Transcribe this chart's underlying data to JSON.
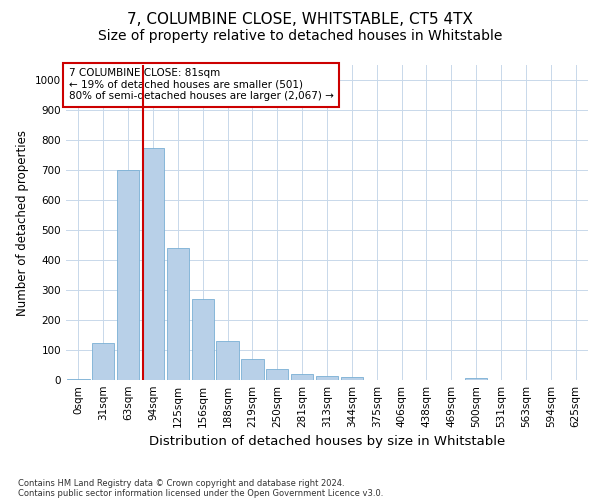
{
  "title": "7, COLUMBINE CLOSE, WHITSTABLE, CT5 4TX",
  "subtitle": "Size of property relative to detached houses in Whitstable",
  "xlabel": "Distribution of detached houses by size in Whitstable",
  "ylabel": "Number of detached properties",
  "footnote1": "Contains HM Land Registry data © Crown copyright and database right 2024.",
  "footnote2": "Contains public sector information licensed under the Open Government Licence v3.0.",
  "bar_labels": [
    "0sqm",
    "31sqm",
    "63sqm",
    "94sqm",
    "125sqm",
    "156sqm",
    "188sqm",
    "219sqm",
    "250sqm",
    "281sqm",
    "313sqm",
    "344sqm",
    "375sqm",
    "406sqm",
    "438sqm",
    "469sqm",
    "500sqm",
    "531sqm",
    "563sqm",
    "594sqm",
    "625sqm"
  ],
  "bar_values": [
    5,
    125,
    700,
    775,
    440,
    270,
    130,
    70,
    38,
    20,
    12,
    10,
    0,
    0,
    0,
    0,
    8,
    0,
    0,
    0,
    0
  ],
  "bar_color": "#b8d0e8",
  "bar_edge_color": "#7aafd4",
  "bar_width": 0.9,
  "ylim": [
    0,
    1050
  ],
  "yticks": [
    0,
    100,
    200,
    300,
    400,
    500,
    600,
    700,
    800,
    900,
    1000
  ],
  "vline_color": "#cc0000",
  "vline_x": 2.581,
  "annotation_text": "7 COLUMBINE CLOSE: 81sqm\n← 19% of detached houses are smaller (501)\n80% of semi-detached houses are larger (2,067) →",
  "annotation_box_color": "#ffffff",
  "annotation_box_edge": "#cc0000",
  "bg_color": "#ffffff",
  "grid_color": "#c8d8ea",
  "title_fontsize": 11,
  "subtitle_fontsize": 10,
  "tick_fontsize": 7.5,
  "ylabel_fontsize": 8.5,
  "xlabel_fontsize": 9.5,
  "footnote_fontsize": 6,
  "annot_fontsize": 7.5
}
